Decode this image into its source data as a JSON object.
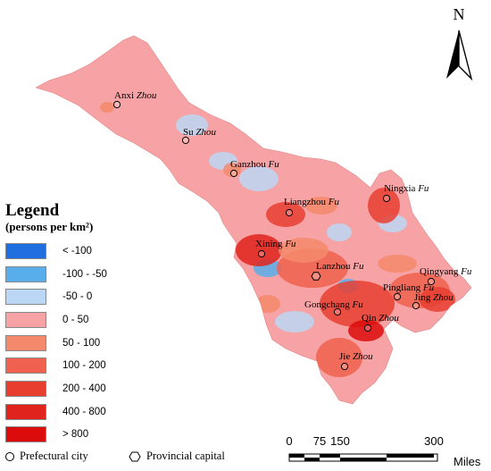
{
  "north_arrow": {
    "letter": "N"
  },
  "legend": {
    "title": "Legend",
    "subtitle": "(persons per km²)",
    "classes": [
      {
        "label": "< -100",
        "color": "#1f6fe0"
      },
      {
        "label": "-100 - -50",
        "color": "#58aeea"
      },
      {
        "label": "-50 - 0",
        "color": "#bcd7f5"
      },
      {
        "label": "0 - 50",
        "color": "#f7a2a4"
      },
      {
        "label": "50 - 100",
        "color": "#f5896c"
      },
      {
        "label": "100 - 200",
        "color": "#f0614f"
      },
      {
        "label": "200 - 400",
        "color": "#e83e30"
      },
      {
        "label": "400 - 800",
        "color": "#e0231c"
      },
      {
        "label": "> 800",
        "color": "#dc0c0c"
      }
    ]
  },
  "key": {
    "prefectural_city": "Prefectural city",
    "provincial_capital": "Provincial capital"
  },
  "scale_bar": {
    "ticks": [
      "0",
      "75",
      "150",
      "300"
    ],
    "units": "Miles"
  },
  "cities": [
    {
      "id": "anxi",
      "name": "Anxi",
      "suffix": "Zhou",
      "type": "prefectural"
    },
    {
      "id": "su",
      "name": "Su",
      "suffix": "Zhou",
      "type": "prefectural"
    },
    {
      "id": "ganzhou",
      "name": "Ganzhou",
      "suffix": "Fu",
      "type": "prefectural"
    },
    {
      "id": "liangzhou",
      "name": "Liangzhou",
      "suffix": "Fu",
      "type": "prefectural"
    },
    {
      "id": "ningxia",
      "name": "Ningxia",
      "suffix": "Fu",
      "type": "prefectural"
    },
    {
      "id": "xining",
      "name": "Xining",
      "suffix": "Fu",
      "type": "prefectural"
    },
    {
      "id": "lanzhou",
      "name": "Lanzhou",
      "suffix": "Fu",
      "type": "provincial"
    },
    {
      "id": "qingyang",
      "name": "Qingyang",
      "suffix": "Fu",
      "type": "prefectural"
    },
    {
      "id": "pingliang",
      "name": "Pingliang",
      "suffix": "Fu",
      "type": "prefectural"
    },
    {
      "id": "jingzhou",
      "name": "Jing",
      "suffix": "Zhou",
      "type": "prefectural"
    },
    {
      "id": "gongchang",
      "name": "Gongchang",
      "suffix": "Fu",
      "type": "prefectural"
    },
    {
      "id": "qinzhou",
      "name": "Qin",
      "suffix": "Zhou",
      "type": "prefectural"
    },
    {
      "id": "jiezhou",
      "name": "Jie",
      "suffix": "Zhou",
      "type": "prefectural"
    }
  ]
}
